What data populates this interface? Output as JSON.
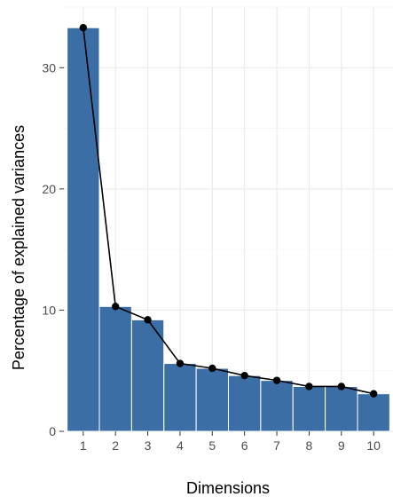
{
  "chart_data": {
    "type": "bar",
    "title": "",
    "xlabel": "Dimensions",
    "ylabel": "Percentage of explained variances",
    "categories": [
      "1",
      "2",
      "3",
      "4",
      "5",
      "6",
      "7",
      "8",
      "9",
      "10"
    ],
    "values": [
      33.3,
      10.3,
      9.2,
      5.6,
      5.2,
      4.6,
      4.2,
      3.7,
      3.7,
      3.1
    ],
    "line_overlay": true,
    "ylim": [
      0,
      35
    ],
    "yticks": [
      0,
      10,
      20,
      30
    ],
    "grid": true,
    "legend": "none",
    "colors": {
      "bar": "#3a6ea5",
      "bar_edge": "#ffffff",
      "line": "#000000",
      "point": "#000000",
      "grid_major": "#ebebeb",
      "grid_minor": "#f5f5f5",
      "tick": "#333333"
    }
  }
}
